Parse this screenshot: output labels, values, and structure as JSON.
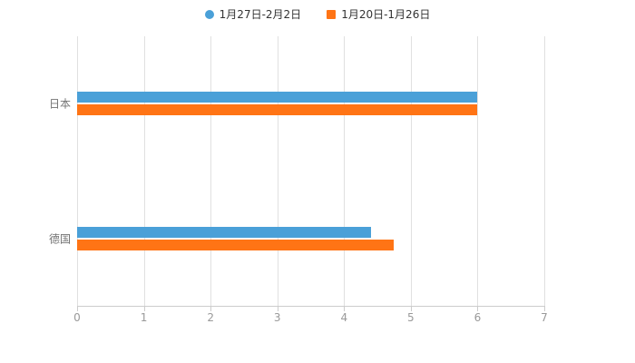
{
  "chart_data": {
    "type": "bar",
    "orientation": "horizontal",
    "title": "",
    "xlabel": "",
    "ylabel": "",
    "categories": [
      "日本",
      "德国"
    ],
    "series": [
      {
        "name": "1月27日-2月2日",
        "color": "#4aa0d8",
        "marker": "circle",
        "values": [
          6.0,
          4.4
        ]
      },
      {
        "name": "1月20日-1月26日",
        "color": "#ff7415",
        "marker": "square",
        "values": [
          6.0,
          4.75
        ]
      }
    ],
    "xlim": [
      0,
      7
    ],
    "xticks": [
      0,
      1,
      2,
      3,
      4,
      5,
      6,
      7
    ],
    "grid": true,
    "legend_position": "top"
  },
  "colors": {
    "background": "#ffffff",
    "grid_line": "#e0e0e0",
    "axis_line": "#cccccc",
    "tick_text": "#999999",
    "category_text": "#737373",
    "legend_text": "#333333"
  }
}
